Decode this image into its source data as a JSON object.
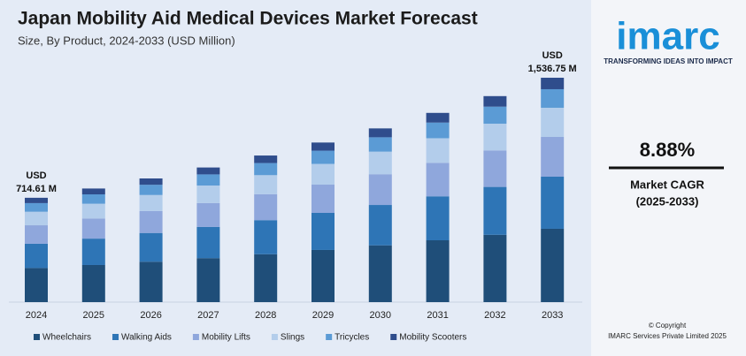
{
  "chart_data": {
    "type": "stacked_bar",
    "title": "Japan Mobility Aid Medical Devices Market Forecast",
    "subtitle": "Size, By Product, 2024-2033 (USD Million)",
    "categories": [
      "2024",
      "2025",
      "2026",
      "2027",
      "2028",
      "2029",
      "2030",
      "2031",
      "2032",
      "2033"
    ],
    "series": [
      {
        "name": "Wheelchairs",
        "color": "#1f4e79",
        "values": [
          233.6,
          254.2,
          276.8,
          301.3,
          328.1,
          357.2,
          388.9,
          423.5,
          461.1,
          502.3
        ]
      },
      {
        "name": "Walking Aids",
        "color": "#2e75b6",
        "values": [
          166.0,
          180.7,
          196.8,
          214.2,
          233.2,
          253.9,
          276.4,
          301.1,
          327.8,
          357.0
        ]
      },
      {
        "name": "Mobility Lifts",
        "color": "#8fa7dc",
        "values": [
          126.6,
          137.8,
          150.0,
          163.3,
          177.8,
          193.6,
          210.7,
          229.5,
          249.9,
          272.2
        ]
      },
      {
        "name": "Slings",
        "color": "#b3cdeb",
        "values": [
          92.8,
          101.1,
          110.0,
          119.8,
          130.4,
          142.0,
          154.6,
          168.4,
          183.3,
          199.6
        ]
      },
      {
        "name": "Tricycles",
        "color": "#5b9bd5",
        "values": [
          59.1,
          64.3,
          70.0,
          76.2,
          83.0,
          90.4,
          98.4,
          107.2,
          116.7,
          127.1
        ]
      },
      {
        "name": "Mobility Scooters",
        "color": "#2f4d8c",
        "values": [
          36.51,
          39.9,
          43.4,
          47.2,
          51.5,
          55.9,
          60.8,
          66.3,
          72.1,
          78.55
        ]
      }
    ],
    "annotations": [
      {
        "x": "2024",
        "value": 714.61,
        "label": [
          "USD",
          "714.61 M"
        ]
      },
      {
        "x": "2033",
        "value": 1536.75,
        "label": [
          "USD",
          "1,536.75 M"
        ]
      }
    ],
    "legend": "bottom"
  },
  "sidebar": {
    "logo": "imarc",
    "tagline": "TRANSFORMING IDEAS INTO IMPACT",
    "cagr": "8.88%",
    "cagr_label": "Market CAGR",
    "cagr_period": "(2025-2033)",
    "copyright": "© Copyright",
    "company": "IMARC Services Private Limited 2025"
  }
}
